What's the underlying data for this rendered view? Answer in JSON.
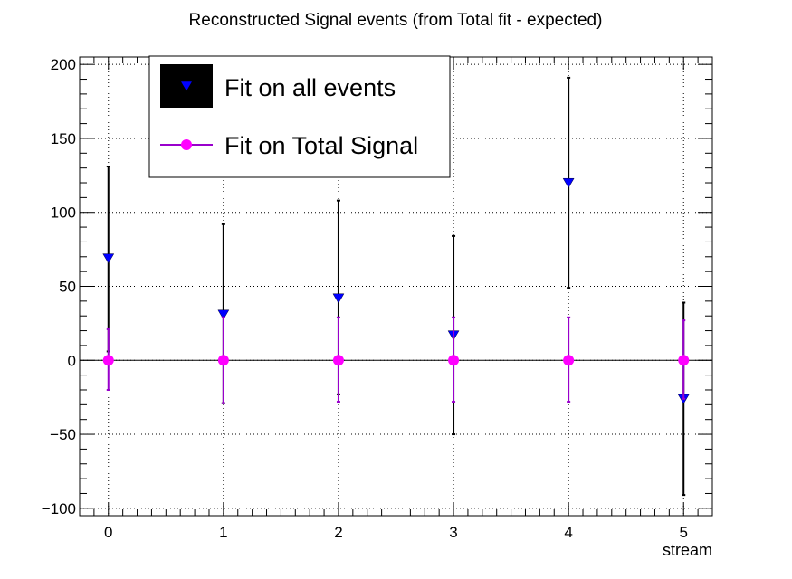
{
  "chart_data": {
    "type": "scatter",
    "title": "Reconstructed Signal events (from Total fit - expected)",
    "xlabel": "stream",
    "ylabel": "",
    "xlim": [
      -0.25,
      5.25
    ],
    "ylim": [
      -105,
      205
    ],
    "x_ticks": [
      0,
      1,
      2,
      3,
      4,
      5
    ],
    "y_ticks": [
      -100,
      -50,
      0,
      50,
      100,
      150,
      200
    ],
    "x_tick_labels": [
      "0",
      "1",
      "2",
      "3",
      "4",
      "5"
    ],
    "y_tick_labels": [
      "−100",
      "−50",
      "0",
      "50",
      "100",
      "150",
      "200"
    ],
    "grid": true,
    "legend_position": "top-left",
    "series": [
      {
        "name": "Fit on all events",
        "marker": "triangle-down",
        "marker_color": "#0000ff",
        "error_color": "#000000",
        "points": [
          {
            "x": 0,
            "y": 69,
            "err_low": 63,
            "err_high": 62
          },
          {
            "x": 1,
            "y": 31,
            "err_low": 60,
            "err_high": 61
          },
          {
            "x": 2,
            "y": 42,
            "err_low": 65,
            "err_high": 66
          },
          {
            "x": 3,
            "y": 17,
            "err_low": 67,
            "err_high": 67
          },
          {
            "x": 4,
            "y": 120,
            "err_low": 71,
            "err_high": 71
          },
          {
            "x": 5,
            "y": -26,
            "err_low": 65,
            "err_high": 65
          }
        ]
      },
      {
        "name": "Fit on Total Signal",
        "marker": "circle",
        "marker_color": "#ff00ff",
        "error_color": "#9900cc",
        "points": [
          {
            "x": 0,
            "y": 0,
            "err_low": 20,
            "err_high": 21
          },
          {
            "x": 1,
            "y": 0,
            "err_low": 29,
            "err_high": 29
          },
          {
            "x": 2,
            "y": 0,
            "err_low": 28,
            "err_high": 29
          },
          {
            "x": 3,
            "y": 0,
            "err_low": 28,
            "err_high": 29
          },
          {
            "x": 4,
            "y": 0,
            "err_low": 28,
            "err_high": 29
          },
          {
            "x": 5,
            "y": 0,
            "err_low": 26,
            "err_high": 27
          }
        ]
      }
    ]
  }
}
